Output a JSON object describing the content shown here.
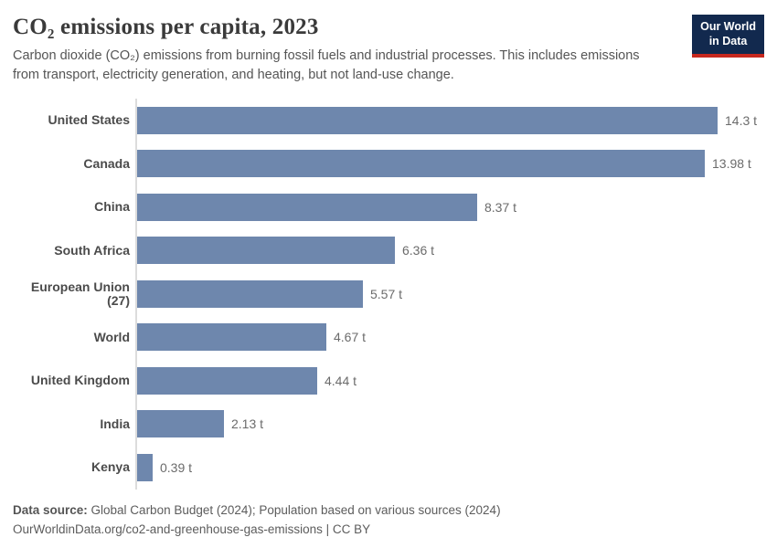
{
  "header": {
    "title": "CO₂ emissions per capita, 2023",
    "subtitle": "Carbon dioxide (CO₂) emissions from burning fossil fuels and industrial processes. This includes emissions from transport, electricity generation, and heating, but not land-use change.",
    "logo": {
      "line1": "Our World",
      "line2": "in Data",
      "bg_color": "#12294e",
      "accent_color": "#c7281e"
    }
  },
  "chart_data": {
    "type": "bar",
    "orientation": "horizontal",
    "title": "CO₂ emissions per capita, 2023",
    "categories": [
      "United States",
      "Canada",
      "China",
      "South Africa",
      "European Union (27)",
      "World",
      "United Kingdom",
      "India",
      "Kenya"
    ],
    "values": [
      14.3,
      13.98,
      8.37,
      6.36,
      5.57,
      4.67,
      4.44,
      2.13,
      0.39
    ],
    "value_labels": [
      "14.3 t",
      "13.98 t",
      "8.37 t",
      "6.36 t",
      "5.57 t",
      "4.67 t",
      "4.44 t",
      "2.13 t",
      "0.39 t"
    ],
    "unit": "t",
    "xlabel": "",
    "ylabel": "",
    "xlim": [
      0,
      14.3
    ],
    "grid": false,
    "legend": false,
    "bar_color": "#6e87ad",
    "axis_line_color": "#dcdcdc"
  },
  "footer": {
    "source_label": "Data source:",
    "source_text": " Global Carbon Budget (2024); Population based on various sources (2024)",
    "url_line": "OurWorldinData.org/co2-and-greenhouse-gas-emissions | CC BY"
  }
}
